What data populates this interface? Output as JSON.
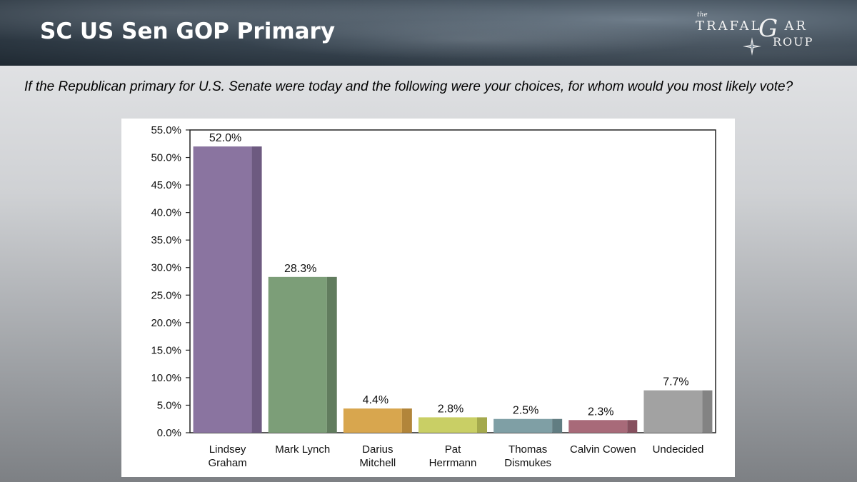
{
  "header": {
    "title": "SC US Sen GOP Primary",
    "logo": {
      "the": "the",
      "row1": "TRAFAL",
      "g": "G",
      "row1_end": "AR",
      "row2": "ROUP"
    }
  },
  "question": "If the Republican primary for U.S. Senate were today and the following were your choices, for whom would you most likely vote?",
  "chart_data": {
    "type": "bar",
    "categories": [
      [
        "Lindsey",
        "Graham"
      ],
      [
        "Mark Lynch"
      ],
      [
        "Darius",
        "Mitchell"
      ],
      [
        "Pat",
        "Herrmann"
      ],
      [
        "Thomas",
        "Dismukes"
      ],
      [
        "Calvin Cowen"
      ],
      [
        "Undecided"
      ]
    ],
    "values": [
      52.0,
      28.3,
      4.4,
      2.8,
      2.5,
      2.3,
      7.7
    ],
    "value_labels": [
      "52.0%",
      "28.3%",
      "4.4%",
      "2.8%",
      "2.5%",
      "2.3%",
      "7.7%"
    ],
    "colors": [
      "#8a74a0",
      "#7c9e78",
      "#d8a64e",
      "#c9cf65",
      "#7f9fa5",
      "#a86a79",
      "#a2a2a2"
    ],
    "side_colors": [
      "#6d5a80",
      "#617c5e",
      "#b2853a",
      "#a4a94d",
      "#617d82",
      "#86505e",
      "#838383"
    ],
    "ylim": [
      0,
      55
    ],
    "yticks": [
      0,
      5,
      10,
      15,
      20,
      25,
      30,
      35,
      40,
      45,
      50,
      55
    ],
    "ytick_labels": [
      "0.0%",
      "5.0%",
      "10.0%",
      "15.0%",
      "20.0%",
      "25.0%",
      "30.0%",
      "35.0%",
      "40.0%",
      "45.0%",
      "50.0%",
      "55.0%"
    ],
    "title": "",
    "xlabel": "",
    "ylabel": "",
    "grid": false,
    "legend": "none"
  }
}
